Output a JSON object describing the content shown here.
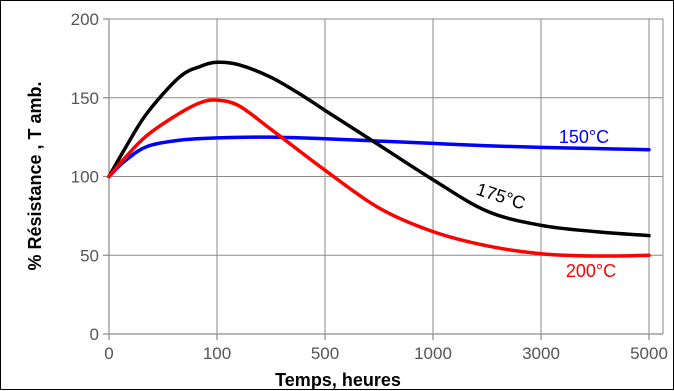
{
  "chart_data": {
    "type": "line",
    "title": "",
    "xlabel": "Temps, heures",
    "ylabel": "% Résistance , T amb.",
    "ylim": [
      0,
      200
    ],
    "x_ticks": [
      "0",
      "100",
      "500",
      "1000",
      "3000",
      "5000"
    ],
    "y_ticks": [
      "0",
      "50",
      "100",
      "150",
      "200"
    ],
    "grid": true,
    "series": [
      {
        "name": "150°C",
        "color": "#0000ff",
        "x_tick_positions": [
          0,
          0.15,
          0.35,
          0.65,
          1,
          1.5,
          2,
          2.5,
          3,
          3.5,
          4,
          4.5,
          5
        ],
        "values": [
          100,
          110,
          119,
          123,
          124.5,
          125,
          124,
          122.5,
          121,
          119.5,
          118.5,
          117.8,
          117
        ]
      },
      {
        "name": "175°C",
        "color": "#000000",
        "x_tick_positions": [
          0,
          0.15,
          0.35,
          0.65,
          0.85,
          1,
          1.2,
          1.5,
          1.8,
          2,
          2.5,
          3,
          3.5,
          4,
          4.5,
          5
        ],
        "values": [
          100,
          118,
          140,
          163,
          170,
          172.5,
          171,
          163,
          151,
          142,
          120,
          98,
          78,
          69,
          65,
          62.5
        ]
      },
      {
        "name": "200°C",
        "color": "#ff0000",
        "x_tick_positions": [
          0,
          0.15,
          0.35,
          0.65,
          0.85,
          1,
          1.2,
          1.5,
          2,
          2.5,
          3,
          3.5,
          4,
          4.5,
          5
        ],
        "values": [
          100,
          112,
          126,
          140,
          147,
          148.5,
          145,
          130,
          104,
          80,
          65,
          56,
          51,
          49.5,
          50
        ]
      }
    ]
  }
}
